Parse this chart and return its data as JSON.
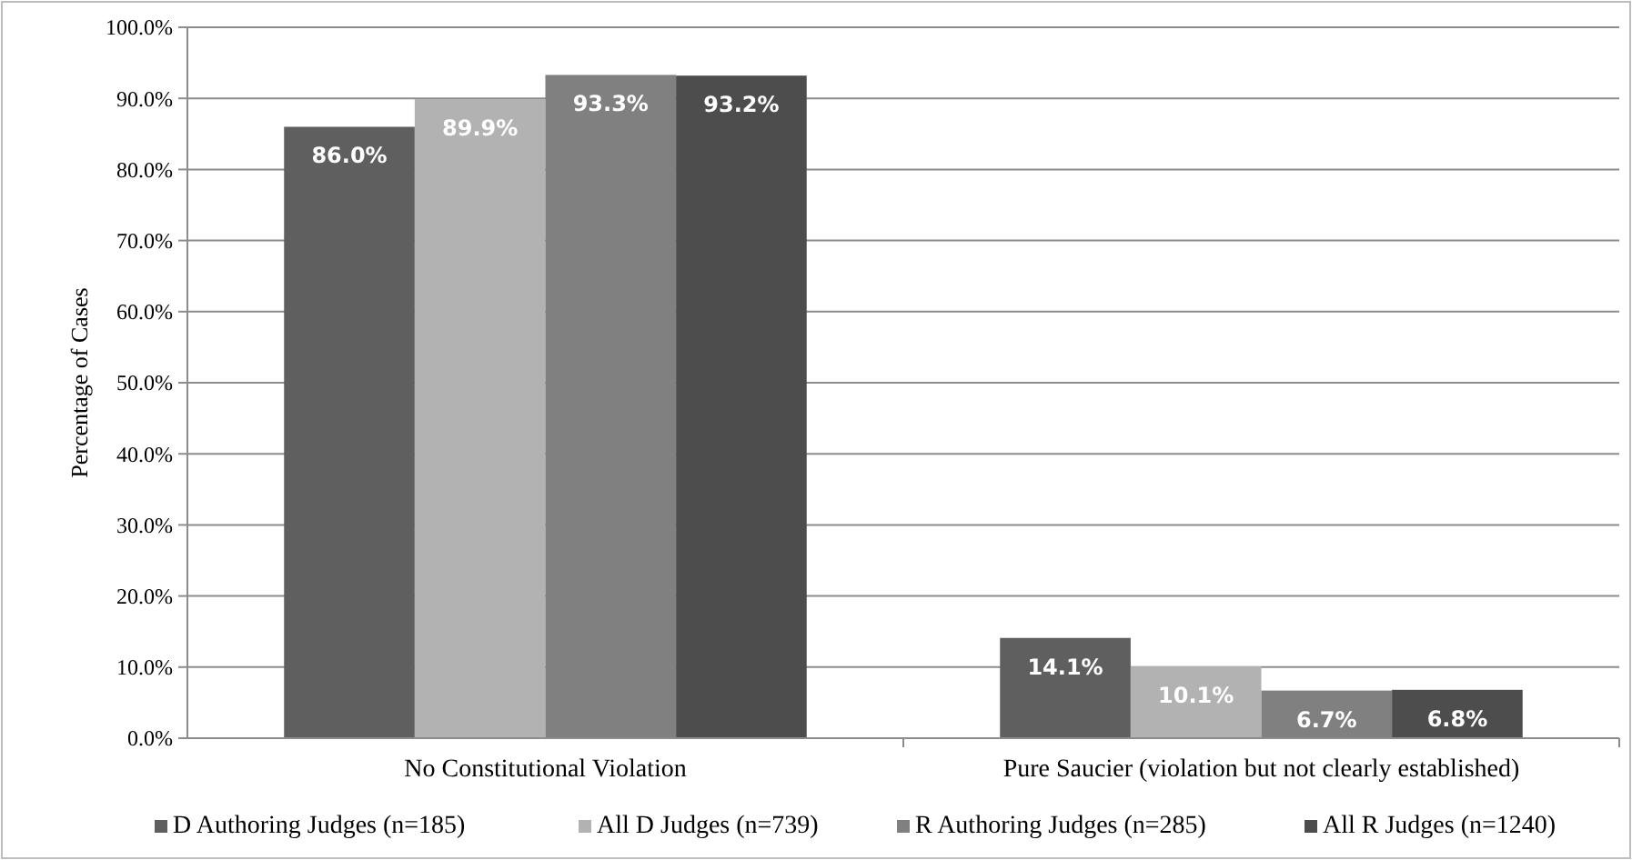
{
  "chart_data": {
    "type": "bar",
    "ylabel": "Percentage of Cases",
    "categories": [
      "No Constitutional Violation",
      "Pure Saucier (violation but not clearly established)"
    ],
    "series": [
      {
        "name": "D Authoring Judges (n=185)",
        "color": "#5f5f5f",
        "values": [
          86.0,
          14.1
        ],
        "value_labels": [
          "86.0%",
          "14.1%"
        ]
      },
      {
        "name": "All D Judges (n=739)",
        "color": "#b2b2b2",
        "values": [
          89.9,
          10.1
        ],
        "value_labels": [
          "89.9%",
          "10.1%"
        ]
      },
      {
        "name": "R Authoring Judges (n=285)",
        "color": "#808080",
        "values": [
          93.3,
          6.7
        ],
        "value_labels": [
          "93.3%",
          "6.7%"
        ]
      },
      {
        "name": "All R Judges (n=1240)",
        "color": "#4d4d4d",
        "values": [
          93.2,
          6.8
        ],
        "value_labels": [
          "93.2%",
          "6.8%"
        ]
      }
    ],
    "ylim": [
      0,
      100
    ],
    "yticks": [
      {
        "value": 0,
        "label": "0.0%"
      },
      {
        "value": 10,
        "label": "10.0%"
      },
      {
        "value": 20,
        "label": "20.0%"
      },
      {
        "value": 30,
        "label": "30.0%"
      },
      {
        "value": 40,
        "label": "40.0%"
      },
      {
        "value": 50,
        "label": "50.0%"
      },
      {
        "value": 60,
        "label": "60.0%"
      },
      {
        "value": 70,
        "label": "70.0%"
      },
      {
        "value": 80,
        "label": "80.0%"
      },
      {
        "value": 90,
        "label": "90.0%"
      },
      {
        "value": 100,
        "label": "100.0%"
      }
    ],
    "grid": "y",
    "legend": "bottom"
  }
}
